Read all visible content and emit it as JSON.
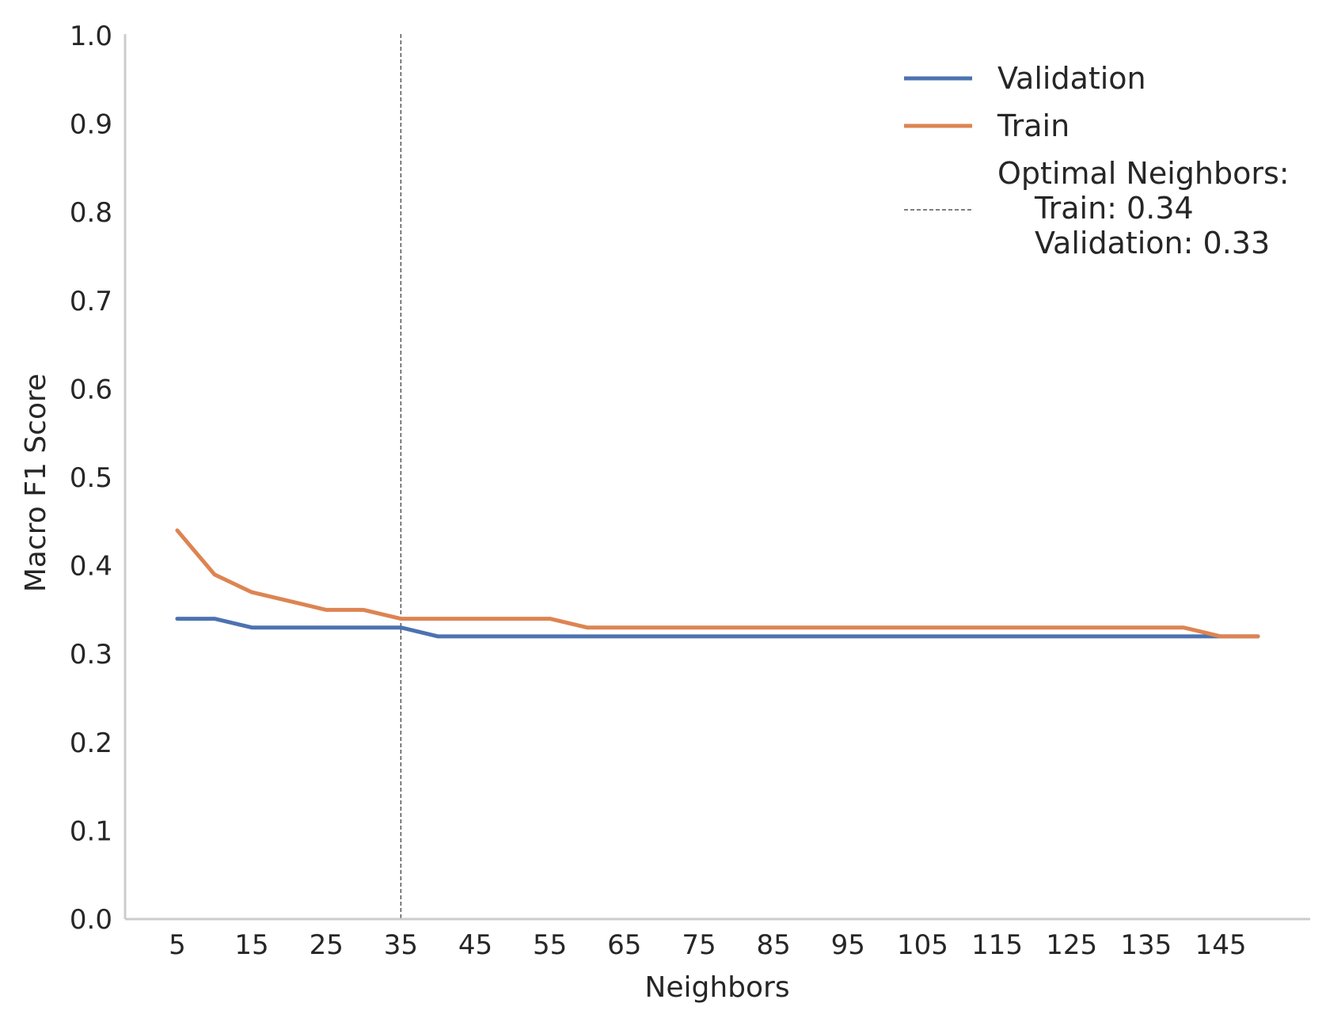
{
  "chart_data": {
    "type": "line",
    "xlabel": "Neighbors",
    "ylabel": "Macro F1 Score",
    "xlim": [
      -2,
      157
    ],
    "ylim": [
      0.0,
      1.0
    ],
    "x_ticks": [
      5,
      15,
      25,
      35,
      45,
      55,
      65,
      75,
      85,
      95,
      105,
      115,
      125,
      135,
      145
    ],
    "y_ticks": [
      "0.0",
      "0.1",
      "0.2",
      "0.3",
      "0.4",
      "0.5",
      "0.6",
      "0.7",
      "0.8",
      "0.9",
      "1.0"
    ],
    "grid": false,
    "legend_position": "top-right",
    "x": [
      5,
      10,
      15,
      20,
      25,
      30,
      35,
      40,
      45,
      50,
      55,
      60,
      65,
      70,
      75,
      80,
      85,
      90,
      95,
      100,
      105,
      110,
      115,
      120,
      125,
      130,
      135,
      140,
      145,
      150
    ],
    "series": [
      {
        "name": "Validation",
        "color": "#4c72b0",
        "values": [
          0.34,
          0.34,
          0.33,
          0.33,
          0.33,
          0.33,
          0.33,
          0.32,
          0.32,
          0.32,
          0.32,
          0.32,
          0.32,
          0.32,
          0.32,
          0.32,
          0.32,
          0.32,
          0.32,
          0.32,
          0.32,
          0.32,
          0.32,
          0.32,
          0.32,
          0.32,
          0.32,
          0.32,
          0.32,
          0.32
        ]
      },
      {
        "name": "Train",
        "color": "#dd8452",
        "values": [
          0.44,
          0.39,
          0.37,
          0.36,
          0.35,
          0.35,
          0.34,
          0.34,
          0.34,
          0.34,
          0.34,
          0.33,
          0.33,
          0.33,
          0.33,
          0.33,
          0.33,
          0.33,
          0.33,
          0.33,
          0.33,
          0.33,
          0.33,
          0.33,
          0.33,
          0.33,
          0.33,
          0.33,
          0.32,
          0.32
        ]
      }
    ],
    "vline": {
      "x": 35,
      "color": "#555555",
      "style": "dashed",
      "legend_lines": [
        "Optimal Neighbors:",
        "Train: 0.34",
        "Validation: 0.33"
      ]
    }
  }
}
